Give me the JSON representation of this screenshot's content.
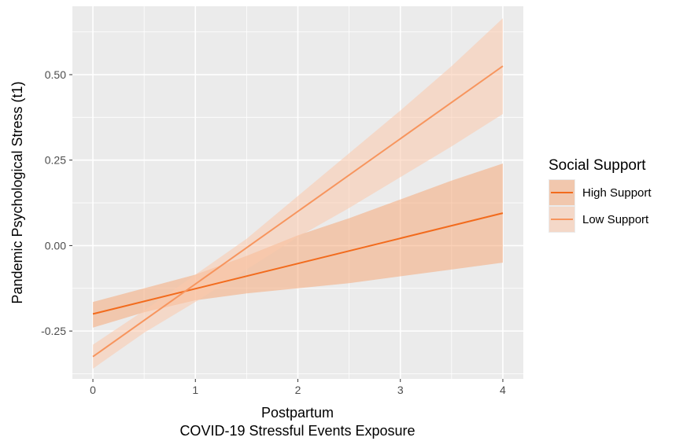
{
  "chart_data": {
    "type": "line",
    "title": "",
    "xlabel": "Postpartum",
    "xlabel_line2": "COVID-19 Stressful Events Exposure",
    "ylabel": "Pandemic Psychological Stress (t1)",
    "xlim": [
      -0.2,
      4.2
    ],
    "ylim": [
      -0.39,
      0.7
    ],
    "x_ticks": [
      0,
      1,
      2,
      3,
      4
    ],
    "x_tick_labels": [
      "0",
      "1",
      "2",
      "3",
      "4"
    ],
    "y_ticks": [
      -0.25,
      0,
      0.25,
      0.5
    ],
    "y_tick_labels": [
      "-0.25",
      "0.00",
      "0.25",
      "0.50"
    ],
    "grid": true,
    "legend": {
      "title": "Social Support",
      "position": "right"
    },
    "series": [
      {
        "name": "High Support",
        "color": "#f26b1d",
        "band_color": "#f5a97a",
        "band_opacity": 0.55,
        "x": [
          0,
          4
        ],
        "y": [
          -0.2,
          0.095
        ],
        "ci": {
          "x": [
            0,
            0.5,
            1,
            1.5,
            2,
            2.5,
            3,
            3.5,
            4
          ],
          "lower": [
            -0.24,
            -0.195,
            -0.16,
            -0.14,
            -0.125,
            -0.11,
            -0.09,
            -0.07,
            -0.05
          ],
          "upper": [
            -0.165,
            -0.125,
            -0.085,
            -0.03,
            0.03,
            0.08,
            0.135,
            0.19,
            0.24
          ]
        }
      },
      {
        "name": "Low Support",
        "color": "#f7955e",
        "band_color": "#fbc9ab",
        "band_opacity": 0.55,
        "x": [
          0,
          4
        ],
        "y": [
          -0.325,
          0.525
        ],
        "ci": {
          "x": [
            0,
            0.5,
            1,
            1.5,
            2,
            2.5,
            3,
            3.5,
            4
          ],
          "lower": [
            -0.36,
            -0.255,
            -0.165,
            -0.07,
            0.025,
            0.11,
            0.2,
            0.29,
            0.385
          ],
          "upper": [
            -0.29,
            -0.19,
            -0.085,
            0.02,
            0.145,
            0.27,
            0.395,
            0.525,
            0.665
          ]
        }
      }
    ]
  }
}
